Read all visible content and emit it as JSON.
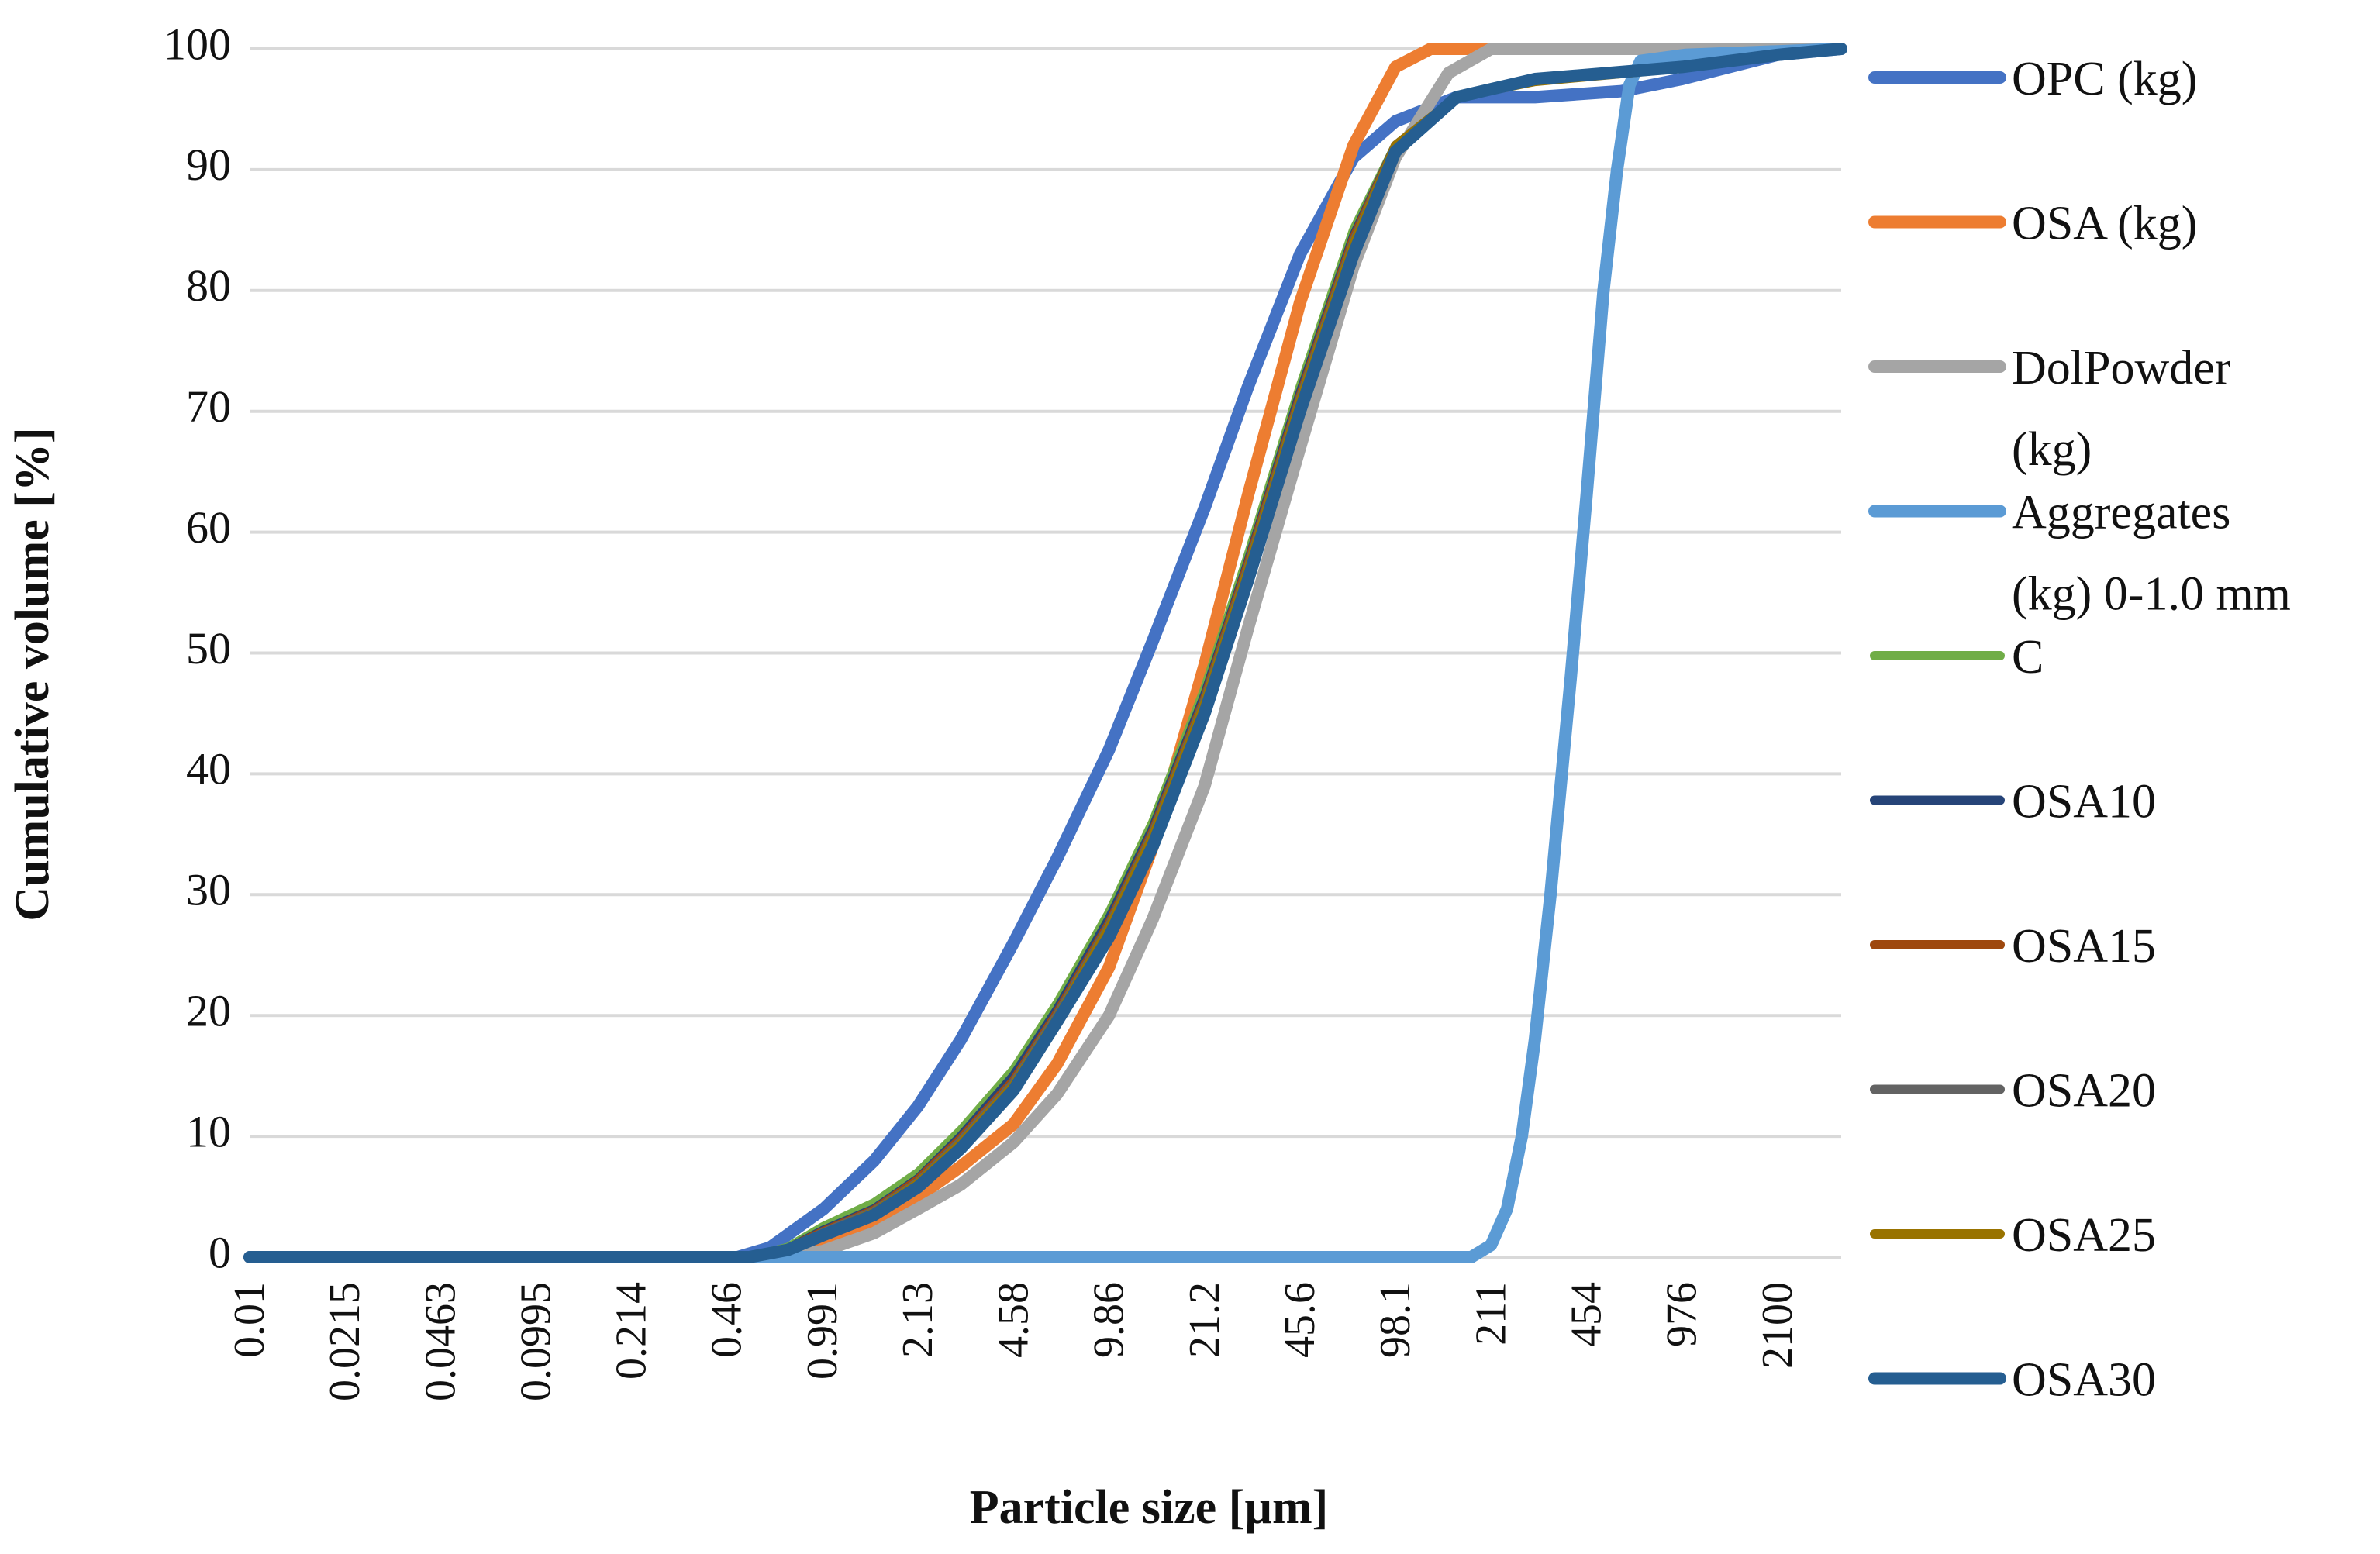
{
  "chart_data": {
    "type": "line",
    "title": "",
    "xlabel": "Particle size [µm]",
    "ylabel": "Cumulative volume [%]",
    "x_scale": "log",
    "xlim": [
      0.01,
      3500
    ],
    "ylim": [
      0,
      100
    ],
    "yticks": [
      "0",
      "10",
      "20",
      "30",
      "40",
      "50",
      "60",
      "70",
      "80",
      "90",
      "100"
    ],
    "xticks": [
      "0.01",
      "0.0215",
      "0.0463",
      "0.0995",
      "0.214",
      "0.46",
      "0.991",
      "2.13",
      "4.58",
      "9.86",
      "21.2",
      "45.6",
      "98.1",
      "211",
      "454",
      "976",
      "2100"
    ],
    "grid": true,
    "legend_position": "right",
    "series": [
      {
        "name": "OPC (kg)",
        "color": "#4472C4",
        "width": 16,
        "points": [
          [
            0.01,
            0
          ],
          [
            0.5,
            0
          ],
          [
            0.65,
            0.8
          ],
          [
            1.0,
            4
          ],
          [
            1.5,
            8
          ],
          [
            2.13,
            12.5
          ],
          [
            3.0,
            18
          ],
          [
            4.58,
            26
          ],
          [
            6.5,
            33
          ],
          [
            9.86,
            42
          ],
          [
            14.0,
            51
          ],
          [
            21.2,
            62
          ],
          [
            30,
            72
          ],
          [
            45.6,
            83
          ],
          [
            70,
            91
          ],
          [
            98.1,
            94
          ],
          [
            160,
            96
          ],
          [
            300,
            96
          ],
          [
            600,
            96.5
          ],
          [
            976,
            97.5
          ],
          [
            2100,
            99.5
          ],
          [
            3500,
            100
          ]
        ]
      },
      {
        "name": "OSA   (kg)",
        "color": "#ED7D31",
        "width": 16,
        "points": [
          [
            0.01,
            0
          ],
          [
            0.6,
            0
          ],
          [
            0.991,
            1.5
          ],
          [
            1.5,
            3
          ],
          [
            2.13,
            5
          ],
          [
            3.0,
            7.5
          ],
          [
            4.58,
            11
          ],
          [
            6.5,
            16
          ],
          [
            9.86,
            24
          ],
          [
            14.0,
            34
          ],
          [
            21.2,
            49
          ],
          [
            30,
            63
          ],
          [
            45.6,
            79
          ],
          [
            70,
            92
          ],
          [
            98.1,
            98.5
          ],
          [
            130,
            100
          ],
          [
            3500,
            100
          ]
        ]
      },
      {
        "name": "DolPowder (kg)",
        "color": "#A5A5A5",
        "width": 16,
        "points": [
          [
            0.01,
            0
          ],
          [
            0.7,
            0
          ],
          [
            0.991,
            0.5
          ],
          [
            1.5,
            2
          ],
          [
            2.13,
            4
          ],
          [
            3.0,
            6
          ],
          [
            4.58,
            9.5
          ],
          [
            6.5,
            13.5
          ],
          [
            9.86,
            20
          ],
          [
            14.0,
            28
          ],
          [
            21.2,
            39
          ],
          [
            30,
            52
          ],
          [
            45.6,
            67
          ],
          [
            70,
            82
          ],
          [
            98.1,
            91
          ],
          [
            150,
            98
          ],
          [
            211,
            100
          ],
          [
            3500,
            100
          ]
        ]
      },
      {
        "name": "Aggregates (kg) 0-1.0 mm",
        "color": "#5B9BD5",
        "width": 16,
        "points": [
          [
            0.01,
            0
          ],
          [
            180,
            0
          ],
          [
            211,
            1
          ],
          [
            240,
            4
          ],
          [
            270,
            10
          ],
          [
            300,
            18
          ],
          [
            340,
            30
          ],
          [
            400,
            48
          ],
          [
            454,
            63
          ],
          [
            520,
            80
          ],
          [
            580,
            90
          ],
          [
            640,
            97
          ],
          [
            700,
            99
          ],
          [
            1000,
            99.5
          ],
          [
            3500,
            100
          ]
        ]
      },
      {
        "name": "C",
        "color": "#70AD47",
        "width": 12,
        "points": [
          [
            0.01,
            0
          ],
          [
            0.55,
            0
          ],
          [
            0.75,
            0.8
          ],
          [
            0.991,
            2.5
          ],
          [
            1.5,
            4.5
          ],
          [
            2.13,
            7
          ],
          [
            3.0,
            10.5
          ],
          [
            4.58,
            15.5
          ],
          [
            6.5,
            21
          ],
          [
            9.86,
            28.5
          ],
          [
            14.0,
            36
          ],
          [
            21.2,
            47
          ],
          [
            30,
            58
          ],
          [
            45.6,
            72
          ],
          [
            70,
            85
          ],
          [
            98.1,
            92
          ],
          [
            160,
            96
          ],
          [
            300,
            97.5
          ],
          [
            976,
            98.5
          ],
          [
            2100,
            99.5
          ],
          [
            3500,
            100
          ]
        ]
      },
      {
        "name": "OSA10",
        "color": "#264478",
        "width": 12,
        "points": [
          [
            0.01,
            0
          ],
          [
            0.55,
            0
          ],
          [
            0.75,
            0.7
          ],
          [
            0.991,
            2.2
          ],
          [
            1.5,
            4
          ],
          [
            2.13,
            6.5
          ],
          [
            3.0,
            10
          ],
          [
            4.58,
            15
          ],
          [
            6.5,
            20.5
          ],
          [
            9.86,
            28
          ],
          [
            14.0,
            35.5
          ],
          [
            21.2,
            46.5
          ],
          [
            30,
            57.5
          ],
          [
            45.6,
            71.5
          ],
          [
            70,
            84.5
          ],
          [
            98.1,
            92
          ],
          [
            160,
            96
          ],
          [
            300,
            97.5
          ],
          [
            976,
            98.5
          ],
          [
            2100,
            99.5
          ],
          [
            3500,
            100
          ]
        ]
      },
      {
        "name": "OSA15",
        "color": "#9E480E",
        "width": 12,
        "points": [
          [
            0.01,
            0
          ],
          [
            0.55,
            0
          ],
          [
            0.75,
            0.7
          ],
          [
            0.991,
            2.1
          ],
          [
            1.5,
            3.9
          ],
          [
            2.13,
            6.4
          ],
          [
            3.0,
            9.8
          ],
          [
            4.58,
            14.6
          ],
          [
            6.5,
            20.2
          ],
          [
            9.86,
            27.6
          ],
          [
            14.0,
            35.2
          ],
          [
            21.2,
            46.2
          ],
          [
            30,
            57.3
          ],
          [
            45.6,
            71.2
          ],
          [
            70,
            84.3
          ],
          [
            98.1,
            92
          ],
          [
            160,
            96
          ],
          [
            300,
            97.4
          ],
          [
            976,
            98.4
          ],
          [
            2100,
            99.5
          ],
          [
            3500,
            100
          ]
        ]
      },
      {
        "name": "OSA20",
        "color": "#636363",
        "width": 12,
        "points": [
          [
            0.01,
            0
          ],
          [
            0.55,
            0
          ],
          [
            0.75,
            0.6
          ],
          [
            0.991,
            2.0
          ],
          [
            1.5,
            3.8
          ],
          [
            2.13,
            6.2
          ],
          [
            3.0,
            9.6
          ],
          [
            4.58,
            14.4
          ],
          [
            6.5,
            20
          ],
          [
            9.86,
            27.4
          ],
          [
            14.0,
            35
          ],
          [
            21.2,
            46
          ],
          [
            30,
            57
          ],
          [
            45.6,
            71
          ],
          [
            70,
            84
          ],
          [
            98.1,
            92
          ],
          [
            160,
            96
          ],
          [
            300,
            97.4
          ],
          [
            976,
            98.4
          ],
          [
            2100,
            99.5
          ],
          [
            3500,
            100
          ]
        ]
      },
      {
        "name": "OSA25",
        "color": "#997300",
        "width": 12,
        "points": [
          [
            0.01,
            0
          ],
          [
            0.55,
            0
          ],
          [
            0.75,
            0.6
          ],
          [
            0.991,
            1.9
          ],
          [
            1.5,
            3.7
          ],
          [
            2.13,
            6.1
          ],
          [
            3.0,
            9.4
          ],
          [
            4.58,
            14.2
          ],
          [
            6.5,
            19.8
          ],
          [
            9.86,
            27.2
          ],
          [
            14.0,
            34.8
          ],
          [
            21.2,
            45.8
          ],
          [
            30,
            56.8
          ],
          [
            45.6,
            70.8
          ],
          [
            70,
            83.8
          ],
          [
            98.1,
            92
          ],
          [
            160,
            96
          ],
          [
            300,
            97.3
          ],
          [
            976,
            98.4
          ],
          [
            2100,
            99.5
          ],
          [
            3500,
            100
          ]
        ]
      },
      {
        "name": "OSA30",
        "color": "#255E91",
        "width": 16,
        "points": [
          [
            0.01,
            0
          ],
          [
            0.55,
            0
          ],
          [
            0.75,
            0.6
          ],
          [
            0.991,
            1.8
          ],
          [
            1.5,
            3.5
          ],
          [
            2.13,
            5.8
          ],
          [
            3.0,
            9
          ],
          [
            4.58,
            13.8
          ],
          [
            6.5,
            19.5
          ],
          [
            9.86,
            26.5
          ],
          [
            14.0,
            34
          ],
          [
            21.2,
            45
          ],
          [
            30,
            56
          ],
          [
            45.6,
            70
          ],
          [
            70,
            83
          ],
          [
            98.1,
            91.5
          ],
          [
            160,
            96
          ],
          [
            300,
            97.5
          ],
          [
            976,
            98.5
          ],
          [
            2100,
            99.5
          ],
          [
            3500,
            100
          ]
        ]
      }
    ],
    "legend": [
      {
        "lines": [
          "OPC (kg)"
        ]
      },
      {
        "lines": [
          "OSA   (kg)"
        ]
      },
      {
        "lines": [
          "DolPowder",
          "(kg)"
        ]
      },
      {
        "lines": [
          "Aggregates",
          "(kg) 0-1.0 mm"
        ]
      },
      {
        "lines": [
          "C"
        ]
      },
      {
        "lines": [
          "OSA10"
        ]
      },
      {
        "lines": [
          "OSA15"
        ]
      },
      {
        "lines": [
          "OSA20"
        ]
      },
      {
        "lines": [
          "OSA25"
        ]
      },
      {
        "lines": [
          "OSA30"
        ]
      }
    ]
  }
}
